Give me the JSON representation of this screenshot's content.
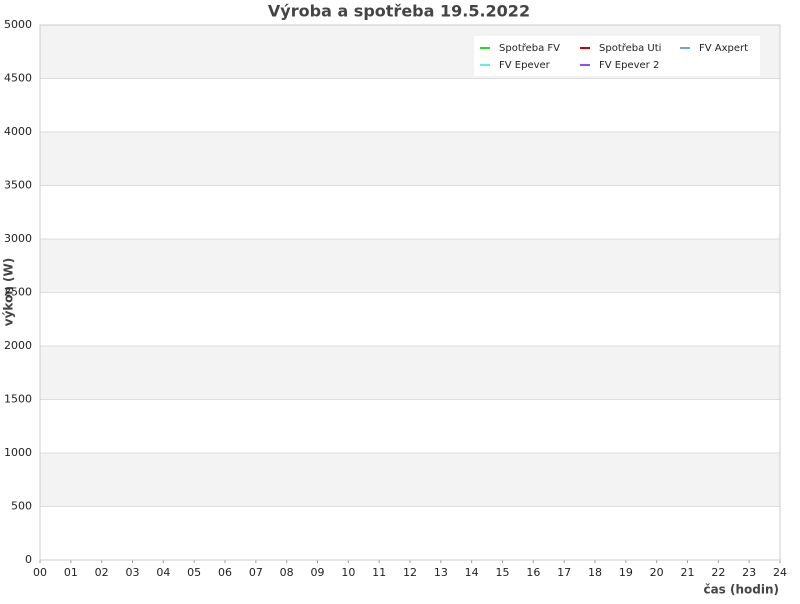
{
  "chart_data": {
    "type": "line",
    "title": "Výroba a spotřeba 19.5.2022",
    "x_label": "čas (hodin)",
    "y_label": "výkon (W)",
    "xlim": [
      0,
      24
    ],
    "xticks": [
      {
        "value": 0,
        "label": "00"
      },
      {
        "value": 1,
        "label": "01"
      },
      {
        "value": 2,
        "label": "02"
      },
      {
        "value": 3,
        "label": "03"
      },
      {
        "value": 4,
        "label": "04"
      },
      {
        "value": 5,
        "label": "05"
      },
      {
        "value": 6,
        "label": "06"
      },
      {
        "value": 7,
        "label": "07"
      },
      {
        "value": 8,
        "label": "08"
      },
      {
        "value": 9,
        "label": "09"
      },
      10,
      11,
      12,
      13,
      14,
      15,
      16,
      17,
      18,
      19,
      20,
      21,
      22,
      23,
      24
    ],
    "ylim": [
      0,
      5000
    ],
    "yticks": [
      0,
      500,
      1000,
      1500,
      2000,
      2500,
      3000,
      3500,
      4000,
      4500,
      5000
    ],
    "grid": true,
    "legend": "upper right",
    "series": [
      {
        "name": "Spotřeba FV",
        "color": "#22dd22",
        "values": []
      },
      {
        "name": "Spotřeba Uti",
        "color": "#cc0000",
        "values": []
      },
      {
        "name": "FV Axpert",
        "color": "#6ea6d6",
        "values": []
      },
      {
        "name": "FV Epever",
        "color": "#66eedd",
        "values": []
      },
      {
        "name": "FV Epever 2",
        "color": "#8855ee",
        "values": []
      }
    ]
  }
}
